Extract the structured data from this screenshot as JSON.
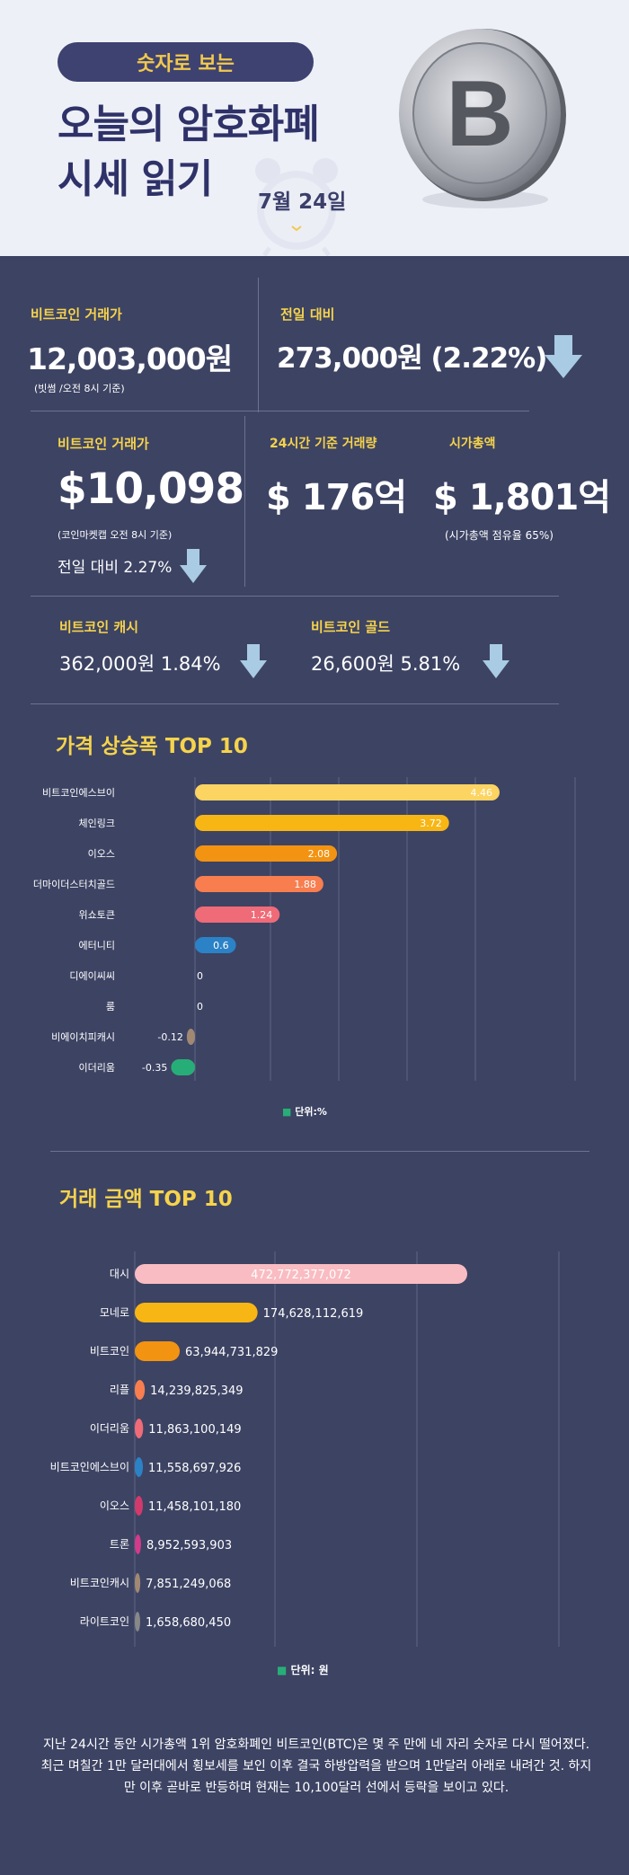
{
  "header": {
    "pill": "숫자로 보는",
    "title_line1": "오늘의 암호화폐",
    "title_line2": "시세 읽기",
    "date": "7월 24일",
    "coin_letter": "B"
  },
  "krw_price": {
    "label": "비트코인 거래가",
    "value": "12,003,000원",
    "note": "(빗썸 /오전 8시 기준)"
  },
  "krw_change": {
    "label": "전일 대비",
    "value": "273,000원 (2.22%)"
  },
  "usd_price": {
    "label": "비트코인 거래가",
    "value": "$10,098",
    "note": "(코인마켓캡 오전 8시 기준)",
    "change": "전일 대비 2.27%"
  },
  "volume": {
    "label": "24시간 기준 거래량",
    "value": "$ 176억"
  },
  "market_cap": {
    "label": "시가총액",
    "value": "$ 1,801억",
    "note": "(시가총액 점유율 65%)"
  },
  "bch": {
    "label": "비트코인 캐시",
    "value": "362,000원  1.84%"
  },
  "btg": {
    "label": "비트코인 골드",
    "value": "26,600원  5.81%"
  },
  "colors": {
    "background": "#3d4363",
    "accent_yellow": "#f5d34c",
    "down_arrow": "#a9cbe3"
  },
  "chart_data": [
    {
      "type": "bar",
      "orientation": "horizontal",
      "title": "가격 상승폭 TOP 10",
      "unit_label": "단위:%",
      "categories": [
        "비트코인에스브이",
        "체인링크",
        "이오스",
        "더마이더스터치골드",
        "위쇼토큰",
        "에터니티",
        "디에이씨씨",
        "룸",
        "비에이치피캐시",
        "이더리움"
      ],
      "values": [
        4.46,
        3.72,
        2.08,
        1.88,
        1.24,
        0.6,
        0,
        0,
        -0.12,
        -0.35
      ],
      "value_labels": [
        "4.46",
        "3.72",
        "2.08",
        "1.88",
        "1.24",
        "0.6",
        "0",
        "0",
        "-0.12",
        "-0.35"
      ],
      "colors": [
        "#fcd462",
        "#f8b615",
        "#f39312",
        "#f87e50",
        "#ef6b78",
        "#2b82c6",
        "#888888",
        "#888888",
        "#a08872",
        "#27ae78"
      ],
      "xlim": [
        -0.5,
        5.0
      ],
      "grid": true
    },
    {
      "type": "bar",
      "orientation": "horizontal",
      "title": "거래 금액 TOP 10",
      "unit_label": "단위: 원",
      "categories": [
        "대시",
        "모네로",
        "비트코인",
        "리플",
        "이더리움",
        "비트코인에스브이",
        "이오스",
        "트론",
        "비트코인캐시",
        "라이트코인"
      ],
      "values": [
        472772377072,
        174628112619,
        63944731829,
        14239825349,
        11863100149,
        11558697926,
        11458101180,
        8952593903,
        7851249068,
        1658680450
      ],
      "value_labels": [
        "472,772,377,072",
        "174,628,112,619",
        "63,944,731,829",
        "14,239,825,349",
        "11,863,100,149",
        "11,558,697,926",
        "11,458,101,180",
        "8,952,593,903",
        "7,851,249,068",
        "1,658,680,450"
      ],
      "colors": [
        "#f9bcc2",
        "#f8b615",
        "#f39312",
        "#f87e50",
        "#ef6b78",
        "#2b82c6",
        "#d23a6c",
        "#d23a8a",
        "#a08872",
        "#888888"
      ],
      "xlim": [
        0,
        800000000000
      ],
      "grid": true
    }
  ],
  "description": "지난 24시간 동안 시가총액 1위 암호화폐인 비트코인(BTC)은 몇 주 만에 네 자리 숫자로 다시 떨어졌다. 최근 며칠간 1만 달러대에서 횡보세를 보인 이후 결국 하방압력을 받으며 1만달러 아래로 내려간 것. 하지만 이후 곧바로 반등하며 현재는 10,100달러 선에서 등락을 보이고 있다."
}
